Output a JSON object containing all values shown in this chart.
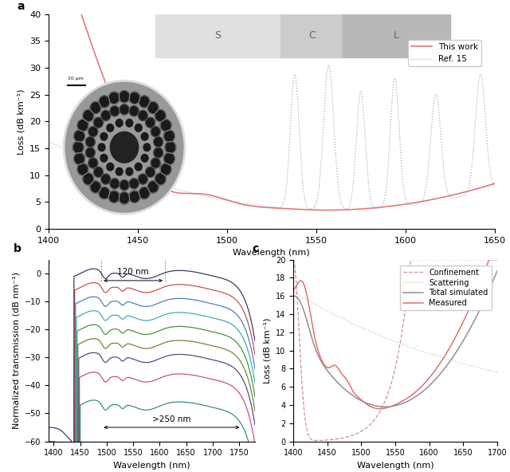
{
  "panel_a": {
    "title": "a",
    "xlim": [
      1400,
      1650
    ],
    "ylim": [
      0,
      40
    ],
    "xlabel": "Wavelength (nm)",
    "ylabel": "Loss (dB km⁻¹)",
    "yticks": [
      0,
      5,
      10,
      15,
      20,
      25,
      30,
      35,
      40
    ],
    "xticks": [
      1400,
      1450,
      1500,
      1550,
      1600,
      1650
    ],
    "band_S": [
      1460,
      1530
    ],
    "band_C": [
      1530,
      1565
    ],
    "band_L": [
      1565,
      1625
    ],
    "band_colors": [
      "#e0e0e0",
      "#cccccc",
      "#b8b8b8"
    ],
    "legend_this_work": "This work",
    "legend_ref15": "Ref. 15",
    "this_work_color": "#e07070",
    "ref15_color": "#aaaacc"
  },
  "panel_b": {
    "title": "b",
    "xlim": [
      1390,
      1780
    ],
    "ylim": [
      -60,
      5
    ],
    "xlabel": "Wavelength (nm)",
    "ylabel": "Normalized transmission (dB nm⁻¹)",
    "yticks": [
      0,
      -10,
      -20,
      -30,
      -40,
      -50,
      -60
    ],
    "xticks": [
      1400,
      1450,
      1500,
      1550,
      1600,
      1650,
      1700,
      1750
    ],
    "annotation_120nm": "120 nm",
    "annotation_250nm": ">250 nm",
    "line_colors": [
      "#303060",
      "#c04848",
      "#4878b8",
      "#38a8a8",
      "#389038",
      "#787828",
      "#683898",
      "#c04888",
      "#288888",
      "#308080"
    ]
  },
  "panel_c": {
    "title": "c",
    "xlim": [
      1400,
      1700
    ],
    "ylim": [
      0,
      20
    ],
    "xlabel": "Wavelength (nm)",
    "ylabel": "Loss (dB km⁻¹)",
    "yticks": [
      0,
      2,
      4,
      6,
      8,
      10,
      12,
      14,
      16,
      18,
      20
    ],
    "xticks": [
      1400,
      1450,
      1500,
      1550,
      1600,
      1650,
      1700
    ],
    "legend_measured": "Measured",
    "legend_confinement": "Confinement",
    "legend_scattering": "Scattering",
    "legend_total": "Total simulated",
    "measured_color": "#e07070",
    "confinement_color": "#d090a0",
    "scattering_color": "#c8c890",
    "total_color": "#909090"
  },
  "bg_color": "#ffffff"
}
